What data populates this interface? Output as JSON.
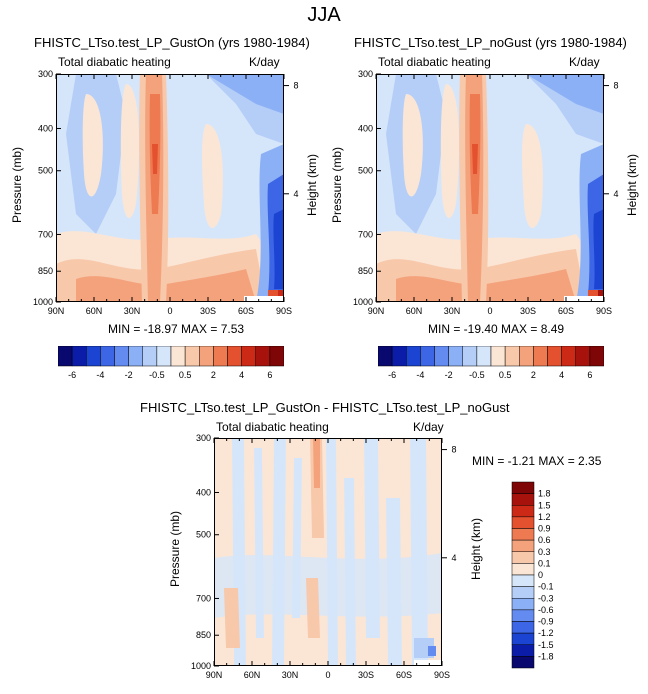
{
  "page_title": "JJA",
  "panels": [
    {
      "title": "FHISTC_LTso.test_LP_GustOn (yrs 1980-1984)",
      "left_label": "Total diabatic heating",
      "right_label": "K/day",
      "ylabel": "Pressure (mb)",
      "ylabel_right": "Height (km)",
      "stats": "MIN = -18.97  MAX =   7.53"
    },
    {
      "title": "FHISTC_LTso.test_LP_noGust (yrs 1980-1984)",
      "left_label": "Total diabatic heating",
      "right_label": "K/day",
      "ylabel": "Pressure (mb)",
      "ylabel_right": "Height (km)",
      "stats": "MIN = -19.40  MAX =   8.49"
    },
    {
      "title": "FHISTC_LTso.test_LP_GustOn - FHISTC_LTso.test_LP_noGust",
      "left_label": "Total diabatic heating",
      "right_label": "K/day",
      "ylabel": "Pressure (mb)",
      "ylabel_right": "Height (km)",
      "stats": "MIN =  -1.21  MAX =   2.35"
    }
  ],
  "chart_data": [
    {
      "type": "heatmap",
      "title": "FHISTC_LTso.test_LP_GustOn (yrs 1980-1984)",
      "ylabel": "Pressure (mb)",
      "ylabel_right": "Height (km)",
      "x_ticks": [
        "90N",
        "60N",
        "30N",
        "0",
        "30S",
        "60S",
        "90S"
      ],
      "y_ticks": [
        300,
        400,
        500,
        700,
        850,
        1000
      ],
      "y_ticks_right": [
        8,
        4
      ],
      "y_scale": "log",
      "ylim": [
        1000,
        300
      ],
      "min": -18.97,
      "max": 7.53,
      "units": "K/day"
    },
    {
      "type": "heatmap",
      "title": "FHISTC_LTso.test_LP_noGust (yrs 1980-1984)",
      "ylabel": "Pressure (mb)",
      "ylabel_right": "Height (km)",
      "x_ticks": [
        "90N",
        "60N",
        "30N",
        "0",
        "30S",
        "60S",
        "90S"
      ],
      "y_ticks": [
        300,
        400,
        500,
        700,
        850,
        1000
      ],
      "y_ticks_right": [
        8,
        4
      ],
      "y_scale": "log",
      "ylim": [
        1000,
        300
      ],
      "min": -19.4,
      "max": 8.49,
      "units": "K/day"
    },
    {
      "type": "heatmap",
      "title": "FHISTC_LTso.test_LP_GustOn - FHISTC_LTso.test_LP_noGust",
      "ylabel": "Pressure (mb)",
      "ylabel_right": "Height (km)",
      "x_ticks": [
        "90N",
        "60N",
        "30N",
        "0",
        "30S",
        "60S",
        "90S"
      ],
      "y_ticks": [
        300,
        400,
        500,
        700,
        850,
        1000
      ],
      "y_ticks_right": [
        8,
        4
      ],
      "y_scale": "log",
      "ylim": [
        1000,
        300
      ],
      "min": -1.21,
      "max": 2.35,
      "units": "K/day"
    }
  ],
  "colorbars": {
    "shared": {
      "orientation": "horizontal",
      "labels": [
        "-6",
        "-4",
        "-2",
        "-0.5",
        "0.5",
        "2",
        "4",
        "6"
      ],
      "colors": [
        "#08086e",
        "#0a1ca8",
        "#1c44d2",
        "#3c66e6",
        "#648cf0",
        "#8cb0f6",
        "#b4cef8",
        "#d6e6fa",
        "#fbe6d6",
        "#f8c8aa",
        "#f4a27c",
        "#ee7a52",
        "#e4512f",
        "#cc2a16",
        "#a8120c",
        "#7e0606"
      ]
    },
    "diff": {
      "orientation": "vertical",
      "labels": [
        "1.8",
        "1.5",
        "1.2",
        "0.9",
        "0.6",
        "0.3",
        "0.1",
        "0",
        "-0.1",
        "-0.3",
        "-0.6",
        "-0.9",
        "-1.2",
        "-1.5",
        "-1.8"
      ],
      "colors": [
        "#7e0606",
        "#a8120c",
        "#cc2a16",
        "#e4512f",
        "#ee7a52",
        "#f4a27c",
        "#f8c8aa",
        "#fbe6d6",
        "#d6e6fa",
        "#b4cef8",
        "#8cb0f6",
        "#648cf0",
        "#3c66e6",
        "#1c44d2",
        "#0a1ca8",
        "#08086e"
      ]
    }
  }
}
